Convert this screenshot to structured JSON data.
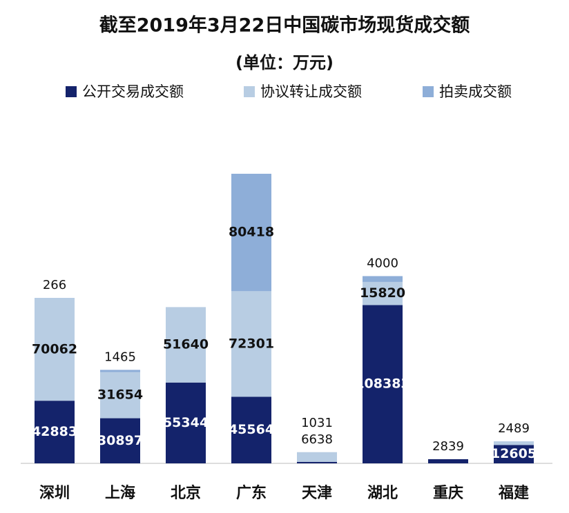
{
  "chart_data": {
    "type": "stacked-bar",
    "title": "截至2019年3月22日中国碳市场现货成交额",
    "subtitle": "(单位：万元)",
    "categories": [
      "深圳",
      "上海",
      "北京",
      "广东",
      "天津",
      "湖北",
      "重庆",
      "福建"
    ],
    "series": [
      {
        "name": "公开交易成交额",
        "color": "#14236b",
        "values": [
          42883,
          30897,
          55344,
          45564,
          1031,
          108383,
          2839,
          12605
        ]
      },
      {
        "name": "协议转让成交额",
        "color": "#b8cde3",
        "values": [
          70062,
          31654,
          51640,
          72301,
          6638,
          15820,
          null,
          2489
        ]
      },
      {
        "name": "拍卖成交额",
        "color": "#8eaed8",
        "values": [
          266,
          1465,
          null,
          80418,
          null,
          4000,
          null,
          null
        ]
      }
    ]
  }
}
